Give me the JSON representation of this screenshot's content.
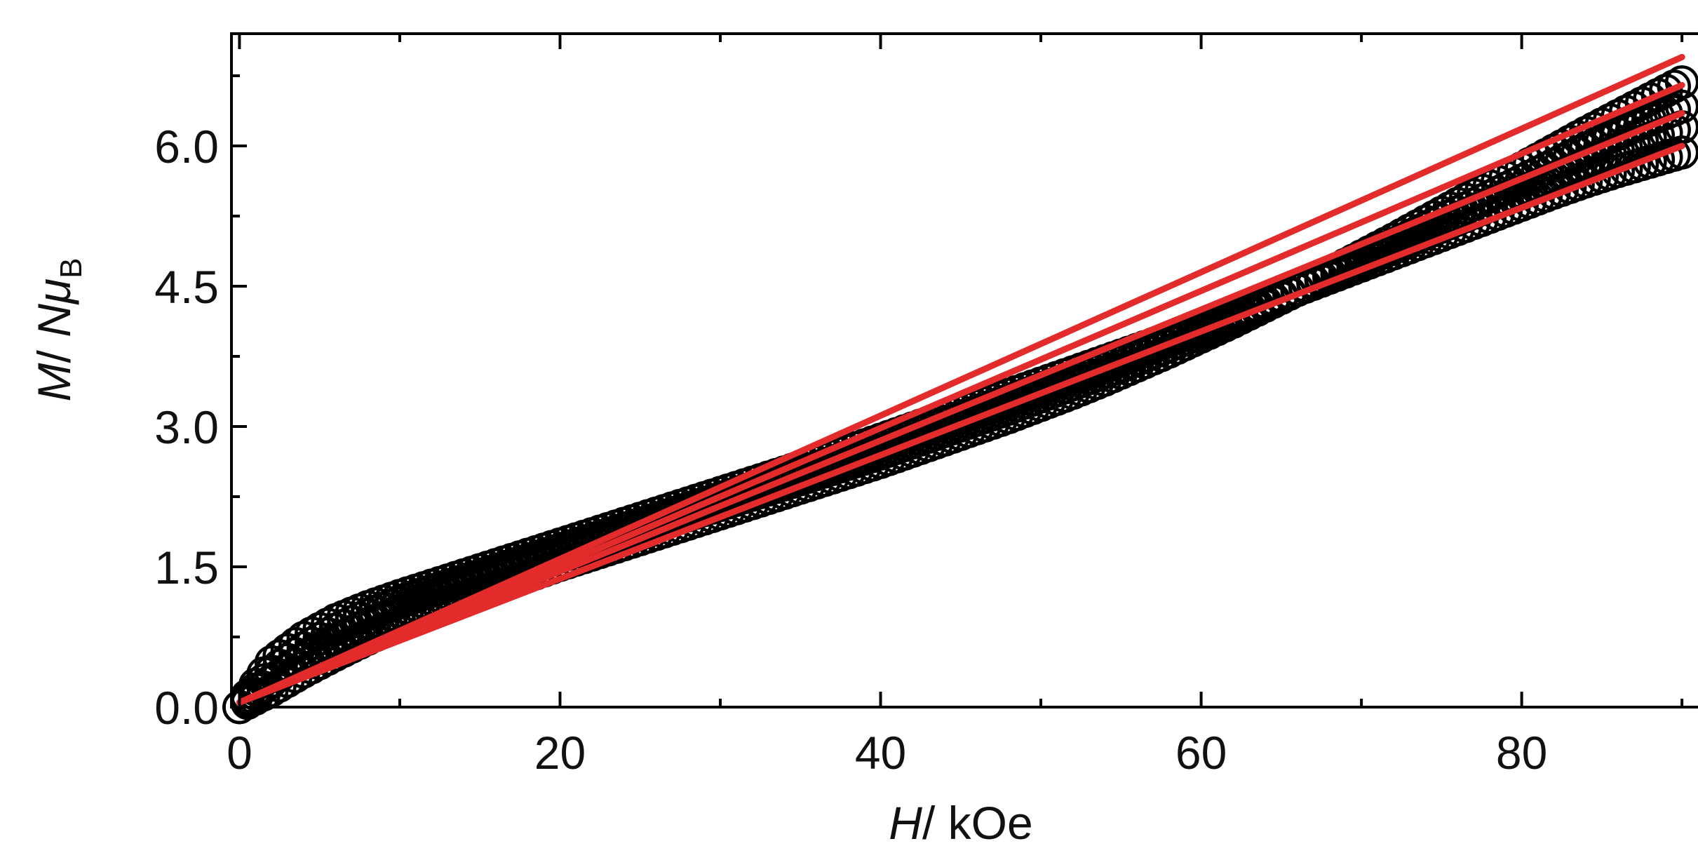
{
  "colors": {
    "marker_stroke": "#000000",
    "fit_line": "#e32b2b",
    "axis": "#000000",
    "background": "#ffffff"
  },
  "chart_data": {
    "type": "scatter",
    "x_axis": {
      "label_italic": "H",
      "label_rest": "/ kOe",
      "range": [
        -0.5,
        91
      ],
      "major_ticks": [
        0,
        20,
        40,
        60,
        80
      ],
      "minor_ticks": [
        10,
        30,
        50,
        70,
        90
      ],
      "tick_labels": [
        "0",
        "20",
        "40",
        "60",
        "80"
      ]
    },
    "y_axis": {
      "label_M": "M",
      "label_slash": "/ ",
      "label_N": "N",
      "label_mu": "μ",
      "label_sub": "B",
      "range": [
        0,
        7.2
      ],
      "major_ticks": [
        0,
        1.5,
        3.0,
        4.5,
        6.0
      ],
      "tick_labels": [
        "0.0",
        "1.5",
        "3.0",
        "4.5",
        "6.0"
      ]
    },
    "grid": false,
    "legend": "none",
    "marker": "open-circle",
    "x": [
      0,
      2,
      4,
      6,
      8,
      10,
      12,
      14,
      16,
      18,
      20,
      22,
      24,
      26,
      28,
      30,
      32,
      34,
      36,
      38,
      40,
      42,
      44,
      46,
      48,
      50,
      52,
      54,
      56,
      58,
      60,
      62,
      64,
      66,
      68,
      70,
      72,
      74,
      76,
      78,
      80,
      82,
      84,
      86,
      88,
      90
    ],
    "series": [
      {
        "values": [
          0.0,
          0.48,
          0.74,
          0.93,
          1.07,
          1.19,
          1.3,
          1.41,
          1.52,
          1.63,
          1.74,
          1.85,
          1.96,
          2.07,
          2.18,
          2.29,
          2.4,
          2.51,
          2.62,
          2.74,
          2.86,
          2.98,
          3.1,
          3.22,
          3.34,
          3.46,
          3.58,
          3.7,
          3.82,
          3.94,
          4.07,
          4.2,
          4.33,
          4.46,
          4.59,
          4.72,
          4.85,
          4.98,
          5.11,
          5.24,
          5.37,
          5.5,
          5.62,
          5.73,
          5.83,
          5.93
        ]
      },
      {
        "values": [
          0.0,
          0.38,
          0.63,
          0.83,
          0.99,
          1.12,
          1.24,
          1.35,
          1.46,
          1.57,
          1.68,
          1.79,
          1.9,
          2.01,
          2.12,
          2.23,
          2.34,
          2.45,
          2.56,
          2.67,
          2.79,
          2.91,
          3.03,
          3.15,
          3.27,
          3.4,
          3.53,
          3.66,
          3.79,
          3.92,
          4.05,
          4.19,
          4.33,
          4.47,
          4.61,
          4.76,
          4.91,
          5.06,
          5.21,
          5.36,
          5.51,
          5.66,
          5.81,
          5.95,
          6.08,
          6.2
        ]
      },
      {
        "values": [
          0.0,
          0.28,
          0.52,
          0.72,
          0.89,
          1.03,
          1.16,
          1.28,
          1.39,
          1.5,
          1.61,
          1.72,
          1.83,
          1.94,
          2.05,
          2.16,
          2.27,
          2.38,
          2.49,
          2.6,
          2.71,
          2.83,
          2.95,
          3.07,
          3.19,
          3.32,
          3.45,
          3.58,
          3.72,
          3.86,
          4.0,
          4.15,
          4.3,
          4.46,
          4.62,
          4.78,
          4.95,
          5.12,
          5.29,
          5.46,
          5.63,
          5.8,
          5.97,
          6.13,
          6.28,
          6.42
        ]
      },
      {
        "values": [
          0.0,
          0.18,
          0.38,
          0.56,
          0.73,
          0.89,
          1.03,
          1.16,
          1.28,
          1.4,
          1.52,
          1.63,
          1.74,
          1.85,
          1.96,
          2.07,
          2.18,
          2.29,
          2.4,
          2.51,
          2.62,
          2.74,
          2.86,
          2.98,
          3.1,
          3.23,
          3.36,
          3.5,
          3.65,
          3.8,
          3.96,
          4.12,
          4.29,
          4.46,
          4.64,
          4.82,
          5.0,
          5.19,
          5.38,
          5.57,
          5.76,
          5.95,
          6.14,
          6.32,
          6.5,
          6.68
        ]
      }
    ],
    "fits": [
      {
        "x": [
          0,
          90
        ],
        "values": [
          0.05,
          6.0
        ]
      },
      {
        "x": [
          0,
          90
        ],
        "values": [
          0.05,
          6.35
        ]
      },
      {
        "x": [
          0,
          90
        ],
        "values": [
          0.05,
          6.65
        ]
      },
      {
        "x": [
          0,
          90
        ],
        "values": [
          0.05,
          6.95
        ]
      }
    ]
  }
}
